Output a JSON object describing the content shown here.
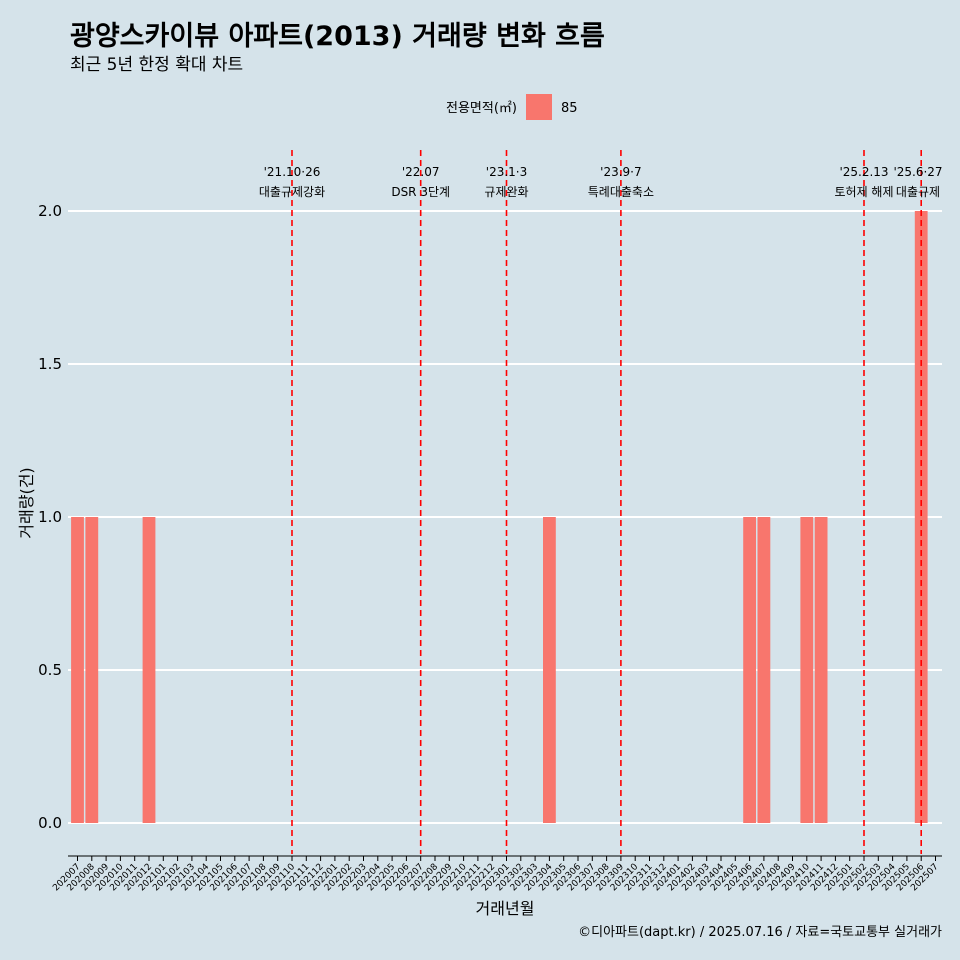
{
  "title": "광양스카이뷰 아파트(2013) 거래량 변화 흐름",
  "subtitle": "최근 5년 한정 확대 차트",
  "caption": "©디아파트(dapt.kr) / 2025.07.16 / 자료=국토교통부 실거래가",
  "legend": {
    "title": "전용면적(㎡)",
    "items": [
      {
        "label": "85",
        "color": "#f8766d"
      }
    ]
  },
  "colors": {
    "background": "#d5e3ea",
    "bar": "#f8766d",
    "event_line": "#ff0000",
    "grid": "#ffffff"
  },
  "chart_data": {
    "type": "bar",
    "xlabel": "거래년월",
    "ylabel": "거래량(건)",
    "ylim": [
      0,
      2
    ],
    "yticks": [
      "0.0",
      "0.5",
      "1.0",
      "1.5",
      "2.0"
    ],
    "grid": true,
    "legend_position": "top",
    "categories": [
      "202007",
      "202008",
      "202009",
      "202010",
      "202011",
      "202012",
      "202101",
      "202102",
      "202103",
      "202104",
      "202105",
      "202106",
      "202107",
      "202108",
      "202109",
      "202110",
      "202111",
      "202112",
      "202201",
      "202202",
      "202203",
      "202204",
      "202205",
      "202206",
      "202207",
      "202208",
      "202209",
      "202210",
      "202211",
      "202212",
      "202301",
      "202302",
      "202303",
      "202304",
      "202305",
      "202306",
      "202307",
      "202308",
      "202309",
      "202310",
      "202311",
      "202312",
      "202401",
      "202402",
      "202403",
      "202404",
      "202405",
      "202406",
      "202407",
      "202408",
      "202409",
      "202410",
      "202411",
      "202412",
      "202501",
      "202502",
      "202503",
      "202504",
      "202505",
      "202506",
      "202507"
    ],
    "series": [
      {
        "name": "85",
        "values": [
          1,
          1,
          0,
          0,
          0,
          1,
          0,
          0,
          0,
          0,
          0,
          0,
          0,
          0,
          0,
          0,
          0,
          0,
          0,
          0,
          0,
          0,
          0,
          0,
          0,
          0,
          0,
          0,
          0,
          0,
          0,
          0,
          0,
          1,
          0,
          0,
          0,
          0,
          0,
          0,
          0,
          0,
          0,
          0,
          0,
          0,
          0,
          1,
          1,
          0,
          0,
          1,
          1,
          0,
          0,
          0,
          0,
          0,
          0,
          2,
          0
        ]
      }
    ],
    "events": [
      {
        "month": "202110",
        "date": "'21.10·26",
        "label": "대출규제강화"
      },
      {
        "month": "202207",
        "date": "'22.07",
        "label": "DSR 3단계"
      },
      {
        "month": "202301",
        "date": "'23.1·3",
        "label": "규제완화"
      },
      {
        "month": "202309",
        "date": "'23.9·7",
        "label": "특례대출축소"
      },
      {
        "month": "202502",
        "date": "'25.2.13",
        "label": "토허제 해제"
      },
      {
        "month": "202506",
        "date": "'25.6·27",
        "label": "대출규제"
      }
    ]
  }
}
